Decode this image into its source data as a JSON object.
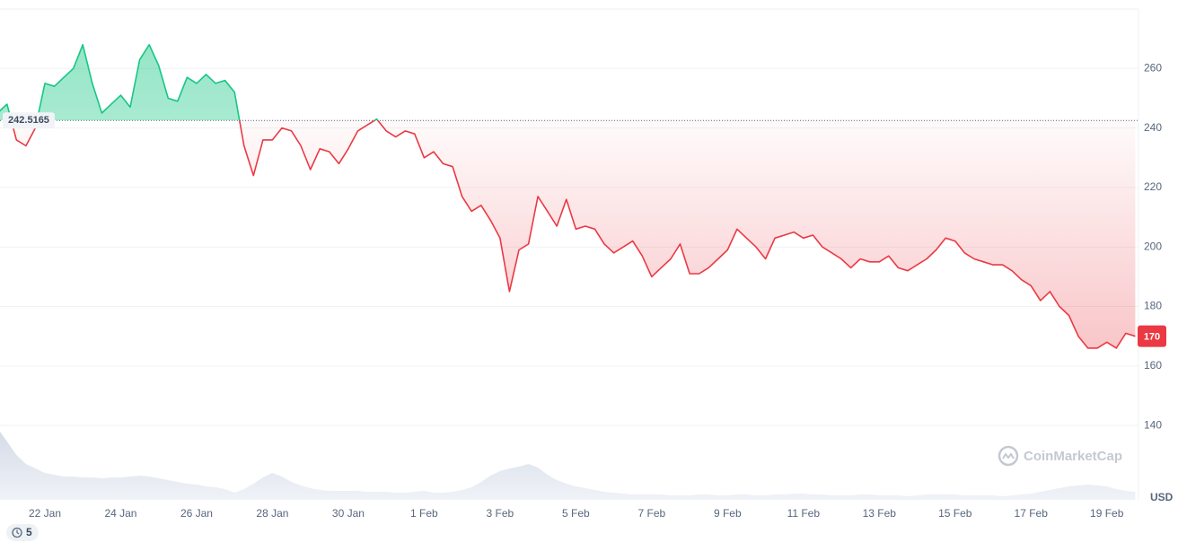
{
  "chart_data": {
    "type": "line",
    "categories": [
      null,
      null,
      null,
      null,
      null,
      "22 Jan",
      null,
      null,
      null,
      null,
      null,
      null,
      null,
      "24 Jan",
      null,
      null,
      null,
      null,
      null,
      null,
      null,
      "26 Jan",
      null,
      null,
      null,
      null,
      null,
      null,
      null,
      "28 Jan",
      null,
      null,
      null,
      null,
      null,
      null,
      null,
      "30 Jan",
      null,
      null,
      null,
      null,
      null,
      null,
      null,
      "1 Feb",
      null,
      null,
      null,
      null,
      null,
      null,
      null,
      "3 Feb",
      null,
      null,
      null,
      null,
      null,
      null,
      null,
      "5 Feb",
      null,
      null,
      null,
      null,
      null,
      null,
      null,
      "7 Feb",
      null,
      null,
      null,
      null,
      null,
      null,
      null,
      "9 Feb",
      null,
      null,
      null,
      null,
      null,
      null,
      null,
      "11 Feb",
      null,
      null,
      null,
      null,
      null,
      null,
      null,
      "13 Feb",
      null,
      null,
      null,
      null,
      null,
      null,
      null,
      "15 Feb",
      null,
      null,
      null,
      null,
      null,
      null,
      null,
      "17 Feb",
      null,
      null,
      null,
      null,
      null,
      null,
      null,
      "19 Feb",
      null,
      null,
      null
    ],
    "values": [
      245,
      248,
      236,
      234,
      240,
      255,
      254,
      257,
      260,
      268,
      255,
      245,
      248,
      251,
      247,
      263,
      268,
      261,
      250,
      249,
      257,
      255,
      258,
      255,
      256,
      252,
      234,
      224,
      236,
      236,
      240,
      239,
      234,
      226,
      233,
      232,
      228,
      233,
      239,
      241,
      243,
      239,
      237,
      239,
      238,
      230,
      232,
      228,
      227,
      217,
      212,
      214,
      209,
      203,
      185,
      199,
      201,
      217,
      212,
      207,
      216,
      206,
      207,
      206,
      201,
      198,
      200,
      202,
      197,
      190,
      193,
      196,
      201,
      191,
      191,
      193,
      196,
      199,
      206,
      203,
      200,
      196,
      203,
      204,
      205,
      203,
      204,
      200,
      198,
      196,
      193,
      196,
      195,
      195,
      197,
      193,
      192,
      194,
      196,
      199,
      203,
      202,
      198,
      196,
      195,
      194,
      194,
      192,
      189,
      187,
      182,
      185,
      180,
      177,
      170,
      166,
      166,
      168,
      166,
      171,
      170
    ],
    "volume": [
      80,
      65,
      50,
      40,
      35,
      30,
      28,
      26,
      26,
      25,
      25,
      24,
      25,
      25,
      26,
      27,
      26,
      24,
      22,
      20,
      18,
      17,
      15,
      14,
      12,
      8,
      12,
      18,
      25,
      30,
      26,
      20,
      16,
      13,
      11,
      10,
      10,
      10,
      10,
      9,
      9,
      9,
      8,
      8,
      9,
      10,
      8,
      8,
      9,
      11,
      14,
      20,
      27,
      32,
      35,
      37,
      40,
      36,
      28,
      22,
      18,
      15,
      13,
      11,
      9,
      8,
      7,
      6,
      6,
      6,
      6,
      5,
      5,
      5,
      6,
      6,
      5,
      5,
      6,
      6,
      5,
      5,
      6,
      6,
      7,
      7,
      6,
      6,
      5,
      5,
      5,
      6,
      6,
      5,
      5,
      5,
      4,
      5,
      6,
      6,
      6,
      6,
      5,
      5,
      5,
      5,
      4,
      5,
      6,
      7,
      9,
      11,
      13,
      15,
      16,
      17,
      16,
      15,
      12,
      10,
      9
    ],
    "baseline": 242.5165,
    "color_up": "#16c784",
    "color_down": "#ea3943",
    "ylim": [
      115,
      280
    ],
    "yticks": [
      140,
      160,
      180,
      200,
      220,
      240,
      260
    ],
    "grid": true,
    "currency": "USD",
    "watermark": "CoinMarketCap",
    "badge": "5"
  }
}
